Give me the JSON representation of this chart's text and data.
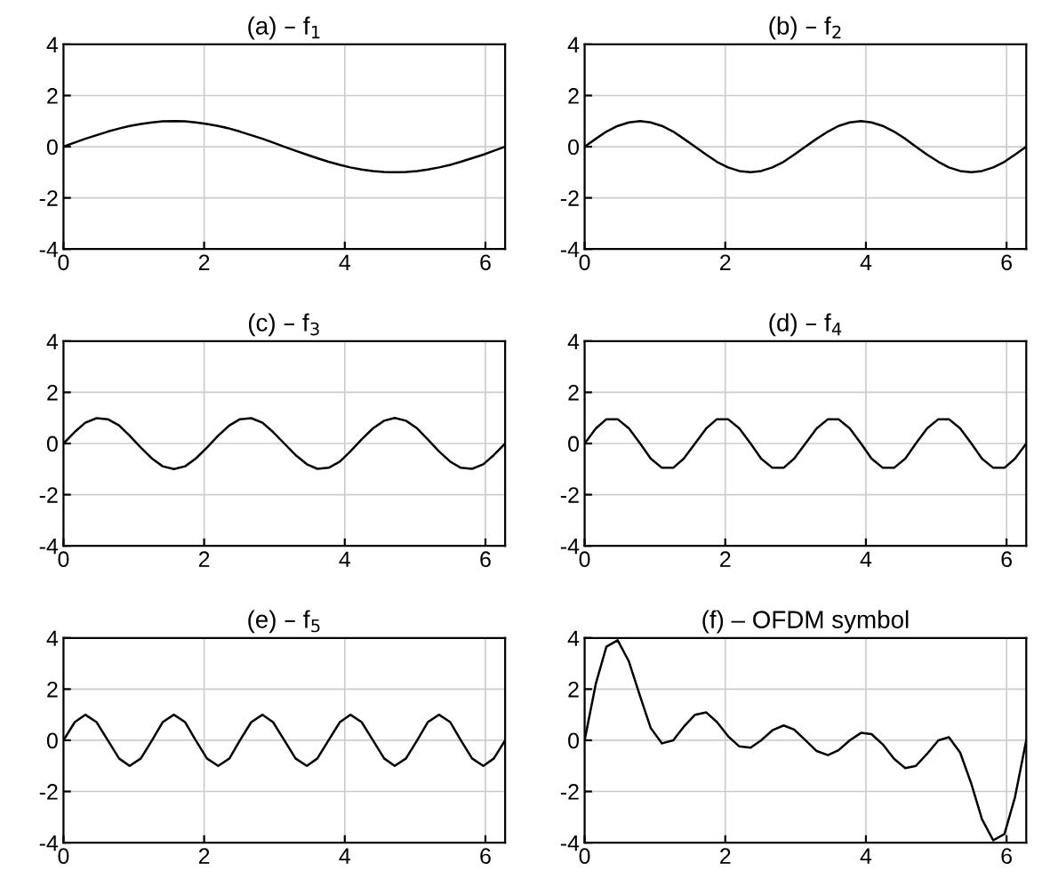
{
  "chart_data": [
    {
      "type": "line",
      "title": "(a) – f$_{1}$",
      "xlim": [
        0,
        6.28
      ],
      "ylim": [
        -4,
        4
      ],
      "xticks": [
        0,
        2,
        4,
        6
      ],
      "yticks": [
        -4,
        -2,
        0,
        2,
        4
      ],
      "grid": true,
      "x": [
        0,
        0.16,
        0.31,
        0.47,
        0.63,
        0.79,
        0.94,
        1.1,
        1.26,
        1.41,
        1.57,
        1.73,
        1.88,
        2.04,
        2.2,
        2.36,
        2.51,
        2.67,
        2.83,
        2.98,
        3.14,
        3.3,
        3.46,
        3.61,
        3.77,
        3.93,
        4.08,
        4.24,
        4.4,
        4.56,
        4.71,
        4.87,
        5.03,
        5.18,
        5.34,
        5.5,
        5.65,
        5.81,
        5.97,
        6.12,
        6.28
      ],
      "series": [
        {
          "color": "#000000",
          "values": [
            0,
            0.16,
            0.31,
            0.45,
            0.59,
            0.71,
            0.81,
            0.89,
            0.95,
            0.99,
            1,
            0.99,
            0.95,
            0.89,
            0.81,
            0.71,
            0.59,
            0.45,
            0.31,
            0.16,
            0,
            -0.16,
            -0.31,
            -0.45,
            -0.59,
            -0.71,
            -0.81,
            -0.89,
            -0.95,
            -0.99,
            -1,
            -0.99,
            -0.95,
            -0.89,
            -0.81,
            -0.71,
            -0.59,
            -0.45,
            -0.31,
            -0.16,
            0
          ]
        }
      ]
    },
    {
      "type": "line",
      "title": "(b) – f$_{2}$",
      "xlim": [
        0,
        6.28
      ],
      "ylim": [
        -4,
        4
      ],
      "xticks": [
        0,
        2,
        4,
        6
      ],
      "yticks": [
        -4,
        -2,
        0,
        2,
        4
      ],
      "grid": true,
      "x": [
        0,
        0.16,
        0.31,
        0.47,
        0.63,
        0.79,
        0.94,
        1.1,
        1.26,
        1.41,
        1.57,
        1.73,
        1.88,
        2.04,
        2.2,
        2.36,
        2.51,
        2.67,
        2.83,
        2.98,
        3.14,
        3.3,
        3.46,
        3.61,
        3.77,
        3.93,
        4.08,
        4.24,
        4.4,
        4.56,
        4.71,
        4.87,
        5.03,
        5.18,
        5.34,
        5.5,
        5.65,
        5.81,
        5.97,
        6.12,
        6.28
      ],
      "series": [
        {
          "color": "#000000",
          "values": [
            0,
            0.31,
            0.59,
            0.81,
            0.95,
            1,
            0.95,
            0.81,
            0.59,
            0.31,
            0,
            -0.31,
            -0.59,
            -0.81,
            -0.95,
            -1,
            -0.95,
            -0.81,
            -0.59,
            -0.31,
            0,
            0.31,
            0.59,
            0.81,
            0.95,
            1,
            0.95,
            0.81,
            0.59,
            0.31,
            0,
            -0.31,
            -0.59,
            -0.81,
            -0.95,
            -1,
            -0.95,
            -0.81,
            -0.59,
            -0.31,
            0
          ]
        }
      ]
    },
    {
      "type": "line",
      "title": "(c) – f$_{3}$",
      "xlim": [
        0,
        6.28
      ],
      "ylim": [
        -4,
        4
      ],
      "xticks": [
        0,
        2,
        4,
        6
      ],
      "yticks": [
        -4,
        -2,
        0,
        2,
        4
      ],
      "grid": true,
      "x": [
        0,
        0.16,
        0.31,
        0.47,
        0.63,
        0.79,
        0.94,
        1.1,
        1.26,
        1.41,
        1.57,
        1.73,
        1.88,
        2.04,
        2.2,
        2.36,
        2.51,
        2.67,
        2.83,
        2.98,
        3.14,
        3.3,
        3.46,
        3.61,
        3.77,
        3.93,
        4.08,
        4.24,
        4.4,
        4.56,
        4.71,
        4.87,
        5.03,
        5.18,
        5.34,
        5.5,
        5.65,
        5.81,
        5.97,
        6.12,
        6.28
      ],
      "series": [
        {
          "color": "#000000",
          "values": [
            0,
            0.45,
            0.81,
            0.99,
            0.95,
            0.71,
            0.31,
            -0.16,
            -0.59,
            -0.89,
            -1,
            -0.89,
            -0.59,
            -0.16,
            0.31,
            0.71,
            0.95,
            0.99,
            0.81,
            0.45,
            0,
            -0.45,
            -0.81,
            -0.99,
            -0.95,
            -0.71,
            -0.31,
            0.16,
            0.59,
            0.89,
            1,
            0.89,
            0.59,
            0.16,
            -0.31,
            -0.71,
            -0.95,
            -0.99,
            -0.81,
            -0.45,
            0
          ]
        }
      ]
    },
    {
      "type": "line",
      "title": "(d) – f$_{4}$",
      "xlim": [
        0,
        6.28
      ],
      "ylim": [
        -4,
        4
      ],
      "xticks": [
        0,
        2,
        4,
        6
      ],
      "yticks": [
        -4,
        -2,
        0,
        2,
        4
      ],
      "grid": true,
      "x": [
        0,
        0.16,
        0.31,
        0.47,
        0.63,
        0.79,
        0.94,
        1.1,
        1.26,
        1.41,
        1.57,
        1.73,
        1.88,
        2.04,
        2.2,
        2.36,
        2.51,
        2.67,
        2.83,
        2.98,
        3.14,
        3.3,
        3.46,
        3.61,
        3.77,
        3.93,
        4.08,
        4.24,
        4.4,
        4.56,
        4.71,
        4.87,
        5.03,
        5.18,
        5.34,
        5.5,
        5.65,
        5.81,
        5.97,
        6.12,
        6.28
      ],
      "series": [
        {
          "color": "#000000",
          "values": [
            0,
            0.59,
            0.95,
            0.95,
            0.59,
            0,
            -0.59,
            -0.95,
            -0.95,
            -0.59,
            0,
            0.59,
            0.95,
            0.95,
            0.59,
            0,
            -0.59,
            -0.95,
            -0.95,
            -0.59,
            0,
            0.59,
            0.95,
            0.95,
            0.59,
            0,
            -0.59,
            -0.95,
            -0.95,
            -0.59,
            0,
            0.59,
            0.95,
            0.95,
            0.59,
            0,
            -0.59,
            -0.95,
            -0.95,
            -0.59,
            0
          ]
        }
      ]
    },
    {
      "type": "line",
      "title": "(e) – f$_{5}$",
      "xlim": [
        0,
        6.28
      ],
      "ylim": [
        -4,
        4
      ],
      "xticks": [
        0,
        2,
        4,
        6
      ],
      "yticks": [
        -4,
        -2,
        0,
        2,
        4
      ],
      "grid": true,
      "x": [
        0,
        0.16,
        0.31,
        0.47,
        0.63,
        0.79,
        0.94,
        1.1,
        1.26,
        1.41,
        1.57,
        1.73,
        1.88,
        2.04,
        2.2,
        2.36,
        2.51,
        2.67,
        2.83,
        2.98,
        3.14,
        3.3,
        3.46,
        3.61,
        3.77,
        3.93,
        4.08,
        4.24,
        4.4,
        4.56,
        4.71,
        4.87,
        5.03,
        5.18,
        5.34,
        5.5,
        5.65,
        5.81,
        5.97,
        6.12,
        6.28
      ],
      "series": [
        {
          "color": "#000000",
          "values": [
            0,
            0.71,
            1,
            0.71,
            0,
            -0.71,
            -1,
            -0.71,
            0,
            0.71,
            1,
            0.71,
            0,
            -0.71,
            -1,
            -0.71,
            0,
            0.71,
            1,
            0.71,
            0,
            -0.71,
            -1,
            -0.71,
            0,
            0.71,
            1,
            0.71,
            0,
            -0.71,
            -1,
            -0.71,
            0,
            0.71,
            1,
            0.71,
            0,
            -0.71,
            -1,
            -0.71,
            0
          ]
        }
      ]
    },
    {
      "type": "line",
      "title": "(f) – OFDM symbol",
      "xlim": [
        0,
        6.28
      ],
      "ylim": [
        -4,
        4
      ],
      "xticks": [
        0,
        2,
        4,
        6
      ],
      "yticks": [
        -4,
        -2,
        0,
        2,
        4
      ],
      "grid": true,
      "x": [
        0,
        0.16,
        0.31,
        0.47,
        0.63,
        0.79,
        0.94,
        1.1,
        1.26,
        1.41,
        1.57,
        1.73,
        1.88,
        2.04,
        2.2,
        2.36,
        2.51,
        2.67,
        2.83,
        2.98,
        3.14,
        3.3,
        3.46,
        3.61,
        3.77,
        3.93,
        4.08,
        4.24,
        4.4,
        4.56,
        4.71,
        4.87,
        5.03,
        5.18,
        5.34,
        5.5,
        5.65,
        5.81,
        5.97,
        6.12,
        6.28
      ],
      "series": [
        {
          "color": "#000000",
          "values": [
            0,
            2.22,
            3.66,
            3.91,
            3.08,
            1.71,
            0.48,
            -0.12,
            0,
            0.53,
            1,
            1.09,
            0.72,
            0.16,
            -0.24,
            -0.29,
            0,
            0.39,
            0.58,
            0.42,
            0,
            -0.42,
            -0.58,
            -0.39,
            0,
            0.29,
            0.24,
            -0.16,
            -0.72,
            -1.09,
            -1,
            -0.53,
            0,
            0.12,
            -0.48,
            -1.71,
            -3.08,
            -3.91,
            -3.66,
            -2.22,
            0
          ]
        }
      ]
    }
  ]
}
